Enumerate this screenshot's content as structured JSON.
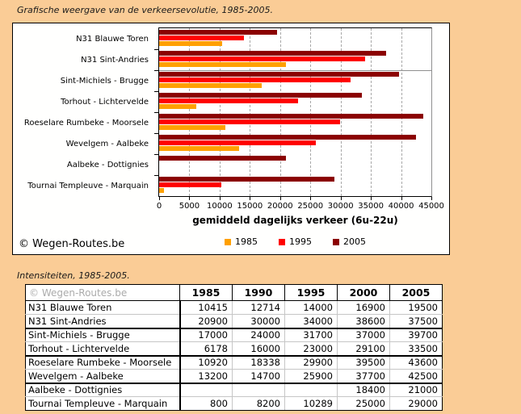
{
  "page": {
    "bg_color": "#FACC96",
    "chart_title": "Grafische weergave van de verkeersevolutie, 1985-2005.",
    "table_title": "Intensiteiten, 1985-2005.",
    "chart_copyright": "© Wegen-Routes.be"
  },
  "chart_data": {
    "type": "bar",
    "orientation": "horizontal",
    "title": "",
    "xlabel": "gemiddeld dagelijks verkeer (6u-22u)",
    "xlim": [
      0,
      45000
    ],
    "xticks": [
      0,
      5000,
      10000,
      15000,
      20000,
      25000,
      30000,
      35000,
      40000,
      45000
    ],
    "grid": "vertical-dashed",
    "legend_position": "bottom",
    "separator_after_category": 2,
    "categories": [
      "N31 Blauwe Toren",
      "N31 Sint-Andries",
      "Sint-Michiels - Brugge",
      "Torhout - Lichtervelde",
      "Roeselare Rumbeke - Moorsele",
      "Wevelgem - Aalbeke",
      "Aalbeke - Dottignies",
      "Tournai Templeuve - Marquain"
    ],
    "series": [
      {
        "name": "1985",
        "color": "#FFA000",
        "values": [
          10415,
          20900,
          17000,
          6178,
          10920,
          13200,
          null,
          800
        ]
      },
      {
        "name": "1995",
        "color": "#FF0000",
        "values": [
          14000,
          34000,
          31700,
          23000,
          29900,
          25900,
          null,
          10289
        ]
      },
      {
        "name": "2005",
        "color": "#8B0000",
        "values": [
          19500,
          37500,
          39700,
          33500,
          43600,
          42500,
          21000,
          29000
        ]
      }
    ]
  },
  "table": {
    "corner_label": "© Wegen-Routes.be",
    "columns": [
      "1985",
      "1990",
      "1995",
      "2000",
      "2005"
    ],
    "rows": [
      {
        "label": "N31 Blauwe Toren",
        "values": [
          "10415",
          "12714",
          "14000",
          "16900",
          "19500"
        ]
      },
      {
        "label": "N31 Sint-Andries",
        "values": [
          "20900",
          "30000",
          "34000",
          "38600",
          "37500"
        ]
      },
      {
        "label": "Sint-Michiels - Brugge",
        "values": [
          "17000",
          "24000",
          "31700",
          "37000",
          "39700"
        ]
      },
      {
        "label": "Torhout - Lichtervelde",
        "values": [
          "6178",
          "16000",
          "23000",
          "29100",
          "33500"
        ]
      },
      {
        "label": "Roeselare Rumbeke - Moorsele",
        "values": [
          "10920",
          "18338",
          "29900",
          "39500",
          "43600"
        ]
      },
      {
        "label": "Wevelgem - Aalbeke",
        "values": [
          "13200",
          "14700",
          "25900",
          "37700",
          "42500"
        ]
      },
      {
        "label": "Aalbeke - Dottignies",
        "values": [
          "",
          "",
          "",
          "18400",
          "21000"
        ]
      },
      {
        "label": "Tournai Templeuve - Marquain",
        "values": [
          "800",
          "8200",
          "10289",
          "25000",
          "29000"
        ]
      }
    ]
  }
}
